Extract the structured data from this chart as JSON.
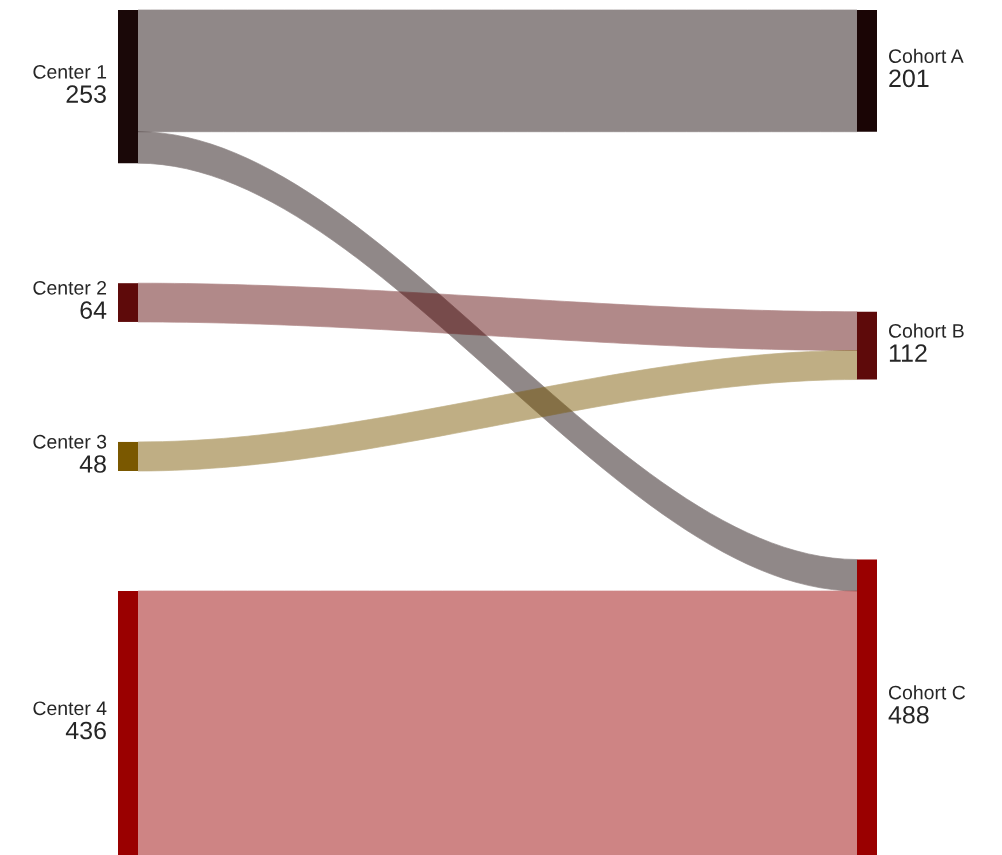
{
  "chart_data": {
    "type": "other",
    "categories": [
      "Center 1",
      "Center 2",
      "Center 3",
      "Center 4",
      "Cohort A",
      "Cohort B",
      "Cohort C"
    ],
    "values": [
      253,
      64,
      48,
      436,
      201,
      112,
      488
    ],
    "data_labels": true,
    "colors": [
      "#1a0808",
      "#5e0a0a",
      "#7a5800",
      "#9a0000",
      "#1a0505",
      "#5e0a0a",
      "#9a0000"
    ]
  }
}
